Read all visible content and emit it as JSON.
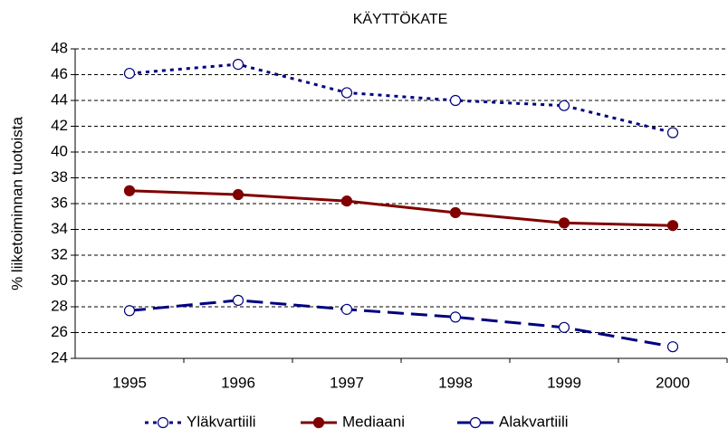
{
  "chart_data": {
    "type": "line",
    "title": "KÄYTTÖKATE",
    "y_label": "% liiketoiminnan tuotoista",
    "categories": [
      "1995",
      "1996",
      "1997",
      "1998",
      "1999",
      "2000"
    ],
    "series": [
      {
        "name": "Yläkvartiili",
        "color": "#000080",
        "values": [
          46.1,
          46.8,
          44.6,
          44.0,
          43.6,
          41.5
        ]
      },
      {
        "name": "Mediaani",
        "color": "#800000",
        "values": [
          37.0,
          36.7,
          36.2,
          35.3,
          34.5,
          34.3
        ]
      },
      {
        "name": "Alakvartiili",
        "color": "#000080",
        "values": [
          27.7,
          28.5,
          27.8,
          27.2,
          26.4,
          24.9
        ]
      }
    ],
    "ylim": [
      24,
      48
    ],
    "yticks": [
      24,
      26,
      28,
      30,
      32,
      34,
      36,
      38,
      40,
      42,
      44,
      46,
      48
    ],
    "grid": true,
    "legend": "bottom"
  }
}
